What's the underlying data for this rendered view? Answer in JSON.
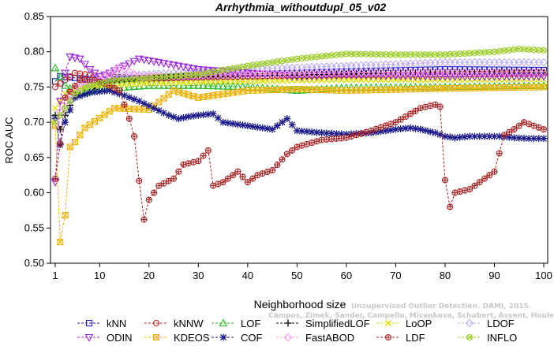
{
  "chart_data": {
    "type": "line",
    "title": "Arrhythmia_withoutdupl_05_v02",
    "xlabel": "Neighborhood size",
    "ylabel": "ROC AUC",
    "xlim": [
      1,
      100
    ],
    "ylim": [
      0.5,
      0.85
    ],
    "x_ticks": [
      "1",
      "10",
      "20",
      "30",
      "40",
      "50",
      "60",
      "70",
      "80",
      "90",
      "100"
    ],
    "y_ticks": [
      "0.50",
      "0.55",
      "0.60",
      "0.65",
      "0.70",
      "0.75",
      "0.80",
      "0.85"
    ],
    "grid": false,
    "legend_position": "bottom",
    "credit_lines": [
      "Unsupervised Outlier Detection. DAMI, 2015.",
      "Campos, Zimek, Sander, Campello, Micenkova, Schubert, Assent, Houle"
    ],
    "series": [
      {
        "name": "kNN",
        "color": "#2222cc",
        "marker": "square",
        "anchors": [
          [
            1,
            0.758
          ],
          [
            2,
            0.765
          ],
          [
            5,
            0.763
          ],
          [
            10,
            0.76
          ],
          [
            20,
            0.763
          ],
          [
            40,
            0.768
          ],
          [
            60,
            0.772
          ],
          [
            80,
            0.775
          ],
          [
            100,
            0.774
          ]
        ]
      },
      {
        "name": "kNNW",
        "color": "#cc2222",
        "marker": "circle",
        "anchors": [
          [
            1,
            0.75
          ],
          [
            3,
            0.76
          ],
          [
            5,
            0.77
          ],
          [
            10,
            0.765
          ],
          [
            20,
            0.762
          ],
          [
            40,
            0.765
          ],
          [
            60,
            0.767
          ],
          [
            80,
            0.768
          ],
          [
            100,
            0.77
          ]
        ]
      },
      {
        "name": "LOF",
        "color": "#22bb22",
        "marker": "triangle-up",
        "anchors": [
          [
            1,
            0.777
          ],
          [
            3,
            0.752
          ],
          [
            6,
            0.74
          ],
          [
            10,
            0.747
          ],
          [
            20,
            0.752
          ],
          [
            30,
            0.752
          ],
          [
            40,
            0.75
          ],
          [
            50,
            0.745
          ],
          [
            60,
            0.749
          ],
          [
            80,
            0.75
          ],
          [
            100,
            0.752
          ]
        ]
      },
      {
        "name": "SimplifiedLOF",
        "color": "#000000",
        "marker": "plus",
        "anchors": [
          [
            1,
            0.71
          ],
          [
            2,
            0.69
          ],
          [
            3,
            0.71
          ],
          [
            5,
            0.738
          ],
          [
            8,
            0.742
          ],
          [
            10,
            0.755
          ],
          [
            15,
            0.76
          ],
          [
            20,
            0.763
          ],
          [
            30,
            0.765
          ],
          [
            50,
            0.767
          ],
          [
            70,
            0.77
          ],
          [
            85,
            0.771
          ],
          [
            100,
            0.77
          ]
        ]
      },
      {
        "name": "LoOP",
        "color": "#dddd00",
        "marker": "x",
        "anchors": [
          [
            1,
            0.72
          ],
          [
            3,
            0.74
          ],
          [
            6,
            0.75
          ],
          [
            10,
            0.752
          ],
          [
            20,
            0.755
          ],
          [
            40,
            0.758
          ],
          [
            60,
            0.76
          ],
          [
            80,
            0.76
          ],
          [
            100,
            0.761
          ]
        ]
      },
      {
        "name": "LDOF",
        "color": "#bbaaee",
        "marker": "diamond",
        "anchors": [
          [
            1,
            0.62
          ],
          [
            3,
            0.72
          ],
          [
            6,
            0.755
          ],
          [
            10,
            0.765
          ],
          [
            20,
            0.768
          ],
          [
            40,
            0.775
          ],
          [
            60,
            0.78
          ],
          [
            80,
            0.785
          ],
          [
            100,
            0.785
          ]
        ]
      },
      {
        "name": "ODIN",
        "color": "#9922dd",
        "marker": "triangle-down",
        "anchors": [
          [
            1,
            0.615
          ],
          [
            2,
            0.73
          ],
          [
            3,
            0.77
          ],
          [
            4,
            0.793
          ],
          [
            6,
            0.79
          ],
          [
            8,
            0.775
          ],
          [
            10,
            0.765
          ],
          [
            12,
            0.77
          ],
          [
            15,
            0.78
          ],
          [
            18,
            0.79
          ],
          [
            22,
            0.785
          ],
          [
            30,
            0.775
          ],
          [
            40,
            0.77
          ],
          [
            50,
            0.765
          ],
          [
            60,
            0.767
          ],
          [
            80,
            0.765
          ],
          [
            100,
            0.765
          ]
        ]
      },
      {
        "name": "KDEOS",
        "color": "#f0b000",
        "marker": "square-x",
        "anchors": [
          [
            1,
            0.695
          ],
          [
            2,
            0.53
          ],
          [
            3,
            0.568
          ],
          [
            4,
            0.665
          ],
          [
            5,
            0.672
          ],
          [
            7,
            0.692
          ],
          [
            10,
            0.706
          ],
          [
            13,
            0.72
          ],
          [
            20,
            0.718
          ],
          [
            25,
            0.745
          ],
          [
            30,
            0.735
          ],
          [
            35,
            0.74
          ],
          [
            40,
            0.745
          ],
          [
            50,
            0.747
          ],
          [
            60,
            0.745
          ],
          [
            80,
            0.748
          ],
          [
            100,
            0.75
          ]
        ]
      },
      {
        "name": "COF",
        "color": "#1a1a8c",
        "marker": "star",
        "anchors": [
          [
            1,
            0.705
          ],
          [
            2,
            0.668
          ],
          [
            3,
            0.7
          ],
          [
            5,
            0.735
          ],
          [
            8,
            0.742
          ],
          [
            12,
            0.745
          ],
          [
            15,
            0.738
          ],
          [
            18,
            0.73
          ],
          [
            21,
            0.72
          ],
          [
            24,
            0.71
          ],
          [
            26,
            0.705
          ],
          [
            28,
            0.708
          ],
          [
            30,
            0.71
          ],
          [
            33,
            0.712
          ],
          [
            35,
            0.7
          ],
          [
            40,
            0.695
          ],
          [
            45,
            0.69
          ],
          [
            48,
            0.705
          ],
          [
            50,
            0.688
          ],
          [
            55,
            0.685
          ],
          [
            60,
            0.683
          ],
          [
            65,
            0.685
          ],
          [
            70,
            0.69
          ],
          [
            73,
            0.692
          ],
          [
            75,
            0.69
          ],
          [
            78,
            0.685
          ],
          [
            80,
            0.68
          ],
          [
            82,
            0.678
          ],
          [
            85,
            0.68
          ],
          [
            88,
            0.68
          ],
          [
            91,
            0.68
          ],
          [
            94,
            0.678
          ],
          [
            97,
            0.677
          ],
          [
            100,
            0.677
          ]
        ]
      },
      {
        "name": "FastABOD",
        "color": "#ff99ee",
        "marker": "diamond",
        "anchors": [
          [
            1,
            0.7
          ],
          [
            3,
            0.73
          ],
          [
            6,
            0.75
          ],
          [
            10,
            0.76
          ],
          [
            14,
            0.778
          ],
          [
            18,
            0.765
          ],
          [
            25,
            0.765
          ],
          [
            40,
            0.768
          ],
          [
            60,
            0.77
          ],
          [
            80,
            0.771
          ],
          [
            100,
            0.771
          ]
        ]
      },
      {
        "name": "LDF",
        "color": "#aa2222",
        "marker": "circle-plus",
        "anchors": [
          [
            1,
            0.62
          ],
          [
            2,
            0.67
          ],
          [
            3,
            0.735
          ],
          [
            6,
            0.76
          ],
          [
            9,
            0.76
          ],
          [
            12,
            0.752
          ],
          [
            14,
            0.745
          ],
          [
            16,
            0.705
          ],
          [
            17,
            0.68
          ],
          [
            18,
            0.617
          ],
          [
            19,
            0.562
          ],
          [
            20,
            0.59
          ],
          [
            22,
            0.61
          ],
          [
            25,
            0.62
          ],
          [
            27,
            0.64
          ],
          [
            30,
            0.645
          ],
          [
            32,
            0.66
          ],
          [
            33,
            0.61
          ],
          [
            35,
            0.615
          ],
          [
            38,
            0.63
          ],
          [
            40,
            0.615
          ],
          [
            42,
            0.625
          ],
          [
            45,
            0.632
          ],
          [
            48,
            0.655
          ],
          [
            50,
            0.665
          ],
          [
            55,
            0.675
          ],
          [
            60,
            0.678
          ],
          [
            65,
            0.688
          ],
          [
            70,
            0.7
          ],
          [
            75,
            0.72
          ],
          [
            78,
            0.725
          ],
          [
            79,
            0.722
          ],
          [
            80,
            0.618
          ],
          [
            81,
            0.58
          ],
          [
            82,
            0.6
          ],
          [
            85,
            0.605
          ],
          [
            88,
            0.62
          ],
          [
            90,
            0.63
          ],
          [
            92,
            0.682
          ],
          [
            94,
            0.69
          ],
          [
            96,
            0.7
          ],
          [
            98,
            0.695
          ],
          [
            100,
            0.69
          ]
        ]
      },
      {
        "name": "INFLO",
        "color": "#99cc22",
        "marker": "circle-x",
        "anchors": [
          [
            1,
            0.7
          ],
          [
            3,
            0.72
          ],
          [
            5,
            0.74
          ],
          [
            8,
            0.752
          ],
          [
            12,
            0.758
          ],
          [
            20,
            0.763
          ],
          [
            30,
            0.768
          ],
          [
            40,
            0.78
          ],
          [
            50,
            0.79
          ],
          [
            60,
            0.797
          ],
          [
            70,
            0.796
          ],
          [
            80,
            0.796
          ],
          [
            90,
            0.8
          ],
          [
            95,
            0.804
          ],
          [
            100,
            0.802
          ]
        ]
      }
    ]
  }
}
